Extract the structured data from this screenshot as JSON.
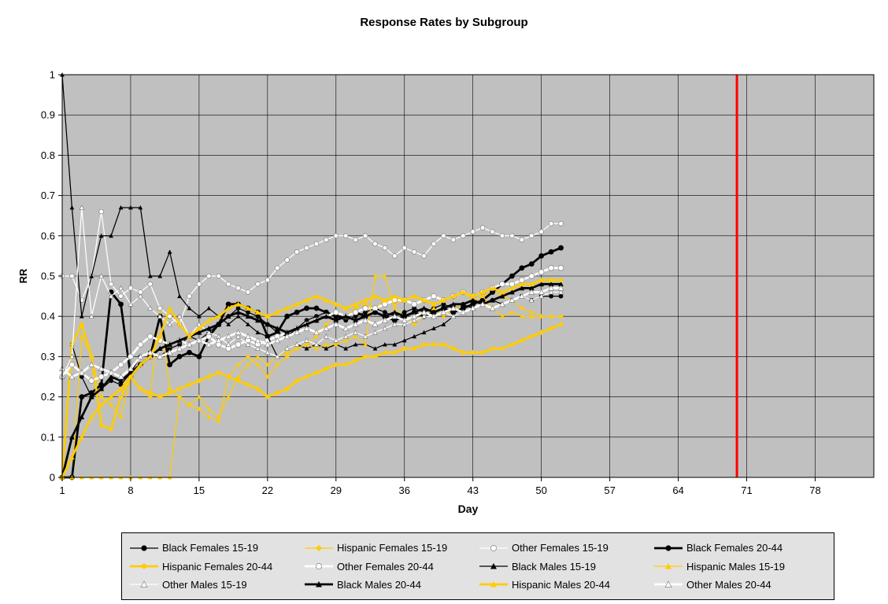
{
  "title": "Response Rates by Subgroup",
  "colors": {
    "plot_background": "#c0c0c0",
    "gridline": "#000000",
    "reference_line": "#ff0000",
    "black_series": "#000000",
    "yellow_series": "#ffcc00",
    "white_series": "#ffffff",
    "legend_background": "#e2e2e2"
  },
  "chart_data": {
    "type": "line",
    "title": "Response Rates by Subgroup",
    "xlabel": "Day",
    "ylabel": "RR",
    "xlim": [
      1,
      84
    ],
    "ylim": [
      0,
      1
    ],
    "x_ticks": [
      1,
      8,
      15,
      22,
      29,
      36,
      43,
      50,
      57,
      64,
      71,
      78
    ],
    "y_ticks": [
      0,
      0.1,
      0.2,
      0.3,
      0.4,
      0.5,
      0.6,
      0.7,
      0.8,
      0.9,
      1
    ],
    "grid": true,
    "legend_position": "bottom",
    "plot_bg": "#c0c0c0",
    "reference_line": {
      "x": 70,
      "color": "#ff0000",
      "width": 3
    },
    "x_start_day": 1,
    "series": [
      {
        "name": "Black Females 15-19",
        "color": "#000000",
        "marker": "circle",
        "width": 1.25,
        "values": [
          0.0,
          0.33,
          0.25,
          0.2,
          0.22,
          0.24,
          0.23,
          0.26,
          0.3,
          0.31,
          0.3,
          0.32,
          0.33,
          0.35,
          0.34,
          0.36,
          0.38,
          0.4,
          0.42,
          0.41,
          0.4,
          0.38,
          0.36,
          0.35,
          0.37,
          0.39,
          0.4,
          0.41,
          0.4,
          0.39,
          0.4,
          0.41,
          0.42,
          0.41,
          0.4,
          0.41,
          0.42,
          0.41,
          0.42,
          0.43,
          0.42,
          0.43,
          0.42,
          0.43,
          0.44,
          0.43,
          0.44,
          0.45,
          0.44,
          0.45,
          0.45,
          0.45
        ]
      },
      {
        "name": "Hispanic Females 15-19",
        "color": "#ffcc00",
        "marker": "diamond",
        "width": 1.25,
        "values": [
          0.0,
          0.0,
          0.35,
          0.3,
          0.2,
          0.18,
          0.15,
          0.25,
          0.22,
          0.2,
          0.42,
          0.22,
          0.2,
          0.18,
          0.17,
          0.15,
          0.14,
          0.25,
          0.28,
          0.3,
          0.28,
          0.25,
          0.28,
          0.3,
          0.32,
          0.33,
          0.35,
          0.38,
          0.4,
          0.4,
          0.42,
          0.43,
          0.42,
          0.44,
          0.43,
          0.44,
          0.45,
          0.44,
          0.43,
          0.44,
          0.45,
          0.46,
          0.44,
          0.45,
          0.46,
          0.45,
          0.44,
          0.42,
          0.41,
          0.4,
          0.4,
          0.4
        ]
      },
      {
        "name": "Other Females 15-19",
        "color": "#ffffff",
        "marker": "circle",
        "width": 1.25,
        "values": [
          0.5,
          0.5,
          0.44,
          0.5,
          0.66,
          0.48,
          0.45,
          0.47,
          0.46,
          0.48,
          0.42,
          0.4,
          0.38,
          0.45,
          0.48,
          0.5,
          0.5,
          0.48,
          0.47,
          0.46,
          0.48,
          0.49,
          0.52,
          0.54,
          0.56,
          0.57,
          0.58,
          0.59,
          0.6,
          0.6,
          0.59,
          0.6,
          0.58,
          0.57,
          0.55,
          0.57,
          0.56,
          0.55,
          0.58,
          0.6,
          0.59,
          0.6,
          0.61,
          0.62,
          0.61,
          0.6,
          0.6,
          0.59,
          0.6,
          0.61,
          0.63,
          0.63
        ]
      },
      {
        "name": "Black Females 20-44",
        "color": "#000000",
        "marker": "circle",
        "width": 2.75,
        "values": [
          0.0,
          0.0,
          0.2,
          0.21,
          0.23,
          0.46,
          0.43,
          0.25,
          0.28,
          0.3,
          0.4,
          0.28,
          0.3,
          0.31,
          0.3,
          0.35,
          0.38,
          0.43,
          0.43,
          0.42,
          0.41,
          0.35,
          0.36,
          0.4,
          0.41,
          0.42,
          0.42,
          0.41,
          0.4,
          0.4,
          0.41,
          0.4,
          0.41,
          0.4,
          0.39,
          0.4,
          0.41,
          0.4,
          0.41,
          0.42,
          0.41,
          0.42,
          0.43,
          0.44,
          0.46,
          0.48,
          0.5,
          0.52,
          0.53,
          0.55,
          0.56,
          0.57
        ]
      },
      {
        "name": "Hispanic Females 20-44",
        "color": "#ffcc00",
        "marker": "diamond",
        "width": 2.75,
        "values": [
          0.0,
          0.33,
          0.38,
          0.3,
          0.13,
          0.12,
          0.2,
          0.25,
          0.22,
          0.21,
          0.2,
          0.21,
          0.22,
          0.23,
          0.24,
          0.25,
          0.26,
          0.25,
          0.24,
          0.23,
          0.22,
          0.2,
          0.21,
          0.22,
          0.24,
          0.25,
          0.26,
          0.27,
          0.28,
          0.28,
          0.29,
          0.3,
          0.3,
          0.31,
          0.31,
          0.32,
          0.32,
          0.33,
          0.33,
          0.33,
          0.32,
          0.31,
          0.31,
          0.31,
          0.32,
          0.32,
          0.33,
          0.34,
          0.35,
          0.36,
          0.37,
          0.38
        ]
      },
      {
        "name": "Other Females 20-44",
        "color": "#ffffff",
        "marker": "circle",
        "width": 2.75,
        "values": [
          0.25,
          0.28,
          0.26,
          0.24,
          0.25,
          0.26,
          0.28,
          0.3,
          0.33,
          0.35,
          0.34,
          0.33,
          0.34,
          0.33,
          0.34,
          0.35,
          0.33,
          0.32,
          0.33,
          0.34,
          0.33,
          0.34,
          0.35,
          0.36,
          0.37,
          0.38,
          0.39,
          0.4,
          0.41,
          0.4,
          0.41,
          0.42,
          0.42,
          0.43,
          0.44,
          0.44,
          0.43,
          0.44,
          0.45,
          0.44,
          0.45,
          0.46,
          0.45,
          0.46,
          0.47,
          0.48,
          0.48,
          0.49,
          0.5,
          0.51,
          0.52,
          0.52
        ]
      },
      {
        "name": "Black Males 15-19",
        "color": "#000000",
        "marker": "triangle",
        "width": 1.25,
        "values": [
          1.0,
          0.67,
          0.4,
          0.5,
          0.6,
          0.6,
          0.67,
          0.67,
          0.67,
          0.5,
          0.5,
          0.56,
          0.45,
          0.42,
          0.4,
          0.42,
          0.4,
          0.38,
          0.4,
          0.38,
          0.36,
          0.35,
          0.3,
          0.32,
          0.33,
          0.32,
          0.33,
          0.32,
          0.33,
          0.32,
          0.33,
          0.33,
          0.32,
          0.33,
          0.33,
          0.34,
          0.35,
          0.36,
          0.37,
          0.38,
          0.4,
          0.41,
          0.42,
          0.43,
          0.44,
          0.45,
          0.46,
          0.47,
          0.47,
          0.48,
          0.48,
          0.48
        ]
      },
      {
        "name": "Hispanic Males 15-19",
        "color": "#ffcc00",
        "marker": "triangle",
        "width": 1.25,
        "values": [
          0.0,
          0.0,
          0.0,
          0.0,
          0.0,
          0.0,
          0.0,
          0.0,
          0.0,
          0.0,
          0.0,
          0.0,
          0.2,
          0.18,
          0.2,
          0.17,
          0.15,
          0.2,
          0.25,
          0.28,
          0.3,
          0.28,
          0.3,
          0.31,
          0.32,
          0.33,
          0.32,
          0.33,
          0.33,
          0.34,
          0.35,
          0.33,
          0.5,
          0.5,
          0.42,
          0.4,
          0.38,
          0.4,
          0.42,
          0.4,
          0.42,
          0.43,
          0.44,
          0.45,
          0.42,
          0.4,
          0.41,
          0.4,
          0.4,
          0.4,
          0.4,
          0.4
        ]
      },
      {
        "name": "Other Males 15-19",
        "color": "#ffffff",
        "marker": "triangle",
        "width": 1.25,
        "values": [
          0.25,
          0.3,
          0.67,
          0.4,
          0.5,
          0.45,
          0.47,
          0.43,
          0.45,
          0.42,
          0.4,
          0.38,
          0.4,
          0.35,
          0.38,
          0.36,
          0.35,
          0.33,
          0.35,
          0.33,
          0.32,
          0.31,
          0.3,
          0.32,
          0.33,
          0.34,
          0.33,
          0.35,
          0.34,
          0.35,
          0.36,
          0.35,
          0.36,
          0.37,
          0.38,
          0.38,
          0.39,
          0.4,
          0.4,
          0.41,
          0.4,
          0.41,
          0.42,
          0.43,
          0.42,
          0.43,
          0.44,
          0.45,
          0.44,
          0.45,
          0.46,
          0.46
        ]
      },
      {
        "name": "Black Males 20-44",
        "color": "#000000",
        "marker": "triangle",
        "width": 2.75,
        "values": [
          0.0,
          0.1,
          0.15,
          0.2,
          0.22,
          0.25,
          0.24,
          0.26,
          0.28,
          0.3,
          0.32,
          0.33,
          0.34,
          0.35,
          0.36,
          0.37,
          0.38,
          0.4,
          0.41,
          0.4,
          0.39,
          0.38,
          0.37,
          0.36,
          0.37,
          0.38,
          0.39,
          0.4,
          0.39,
          0.4,
          0.39,
          0.4,
          0.41,
          0.4,
          0.41,
          0.4,
          0.41,
          0.42,
          0.41,
          0.42,
          0.43,
          0.43,
          0.44,
          0.43,
          0.44,
          0.45,
          0.46,
          0.47,
          0.47,
          0.48,
          0.48,
          0.48
        ]
      },
      {
        "name": "Hispanic Males 20-44",
        "color": "#ffcc00",
        "marker": "triangle",
        "width": 2.75,
        "values": [
          0.0,
          0.05,
          0.1,
          0.15,
          0.18,
          0.2,
          0.22,
          0.25,
          0.28,
          0.3,
          0.35,
          0.42,
          0.38,
          0.35,
          0.37,
          0.39,
          0.4,
          0.42,
          0.43,
          0.42,
          0.41,
          0.4,
          0.41,
          0.42,
          0.43,
          0.44,
          0.45,
          0.44,
          0.43,
          0.42,
          0.43,
          0.44,
          0.45,
          0.44,
          0.45,
          0.44,
          0.45,
          0.44,
          0.43,
          0.44,
          0.45,
          0.46,
          0.45,
          0.46,
          0.47,
          0.46,
          0.47,
          0.48,
          0.48,
          0.49,
          0.49,
          0.49
        ]
      },
      {
        "name": "Other Males 20-44",
        "color": "#ffffff",
        "marker": "triangle",
        "width": 2.75,
        "values": [
          0.27,
          0.25,
          0.26,
          0.28,
          0.27,
          0.26,
          0.25,
          0.27,
          0.3,
          0.31,
          0.3,
          0.31,
          0.32,
          0.33,
          0.34,
          0.33,
          0.34,
          0.35,
          0.36,
          0.35,
          0.34,
          0.33,
          0.34,
          0.35,
          0.36,
          0.37,
          0.36,
          0.37,
          0.38,
          0.37,
          0.38,
          0.39,
          0.38,
          0.39,
          0.4,
          0.39,
          0.4,
          0.41,
          0.4,
          0.41,
          0.42,
          0.41,
          0.42,
          0.43,
          0.42,
          0.43,
          0.44,
          0.45,
          0.46,
          0.46,
          0.47,
          0.47
        ]
      }
    ]
  }
}
